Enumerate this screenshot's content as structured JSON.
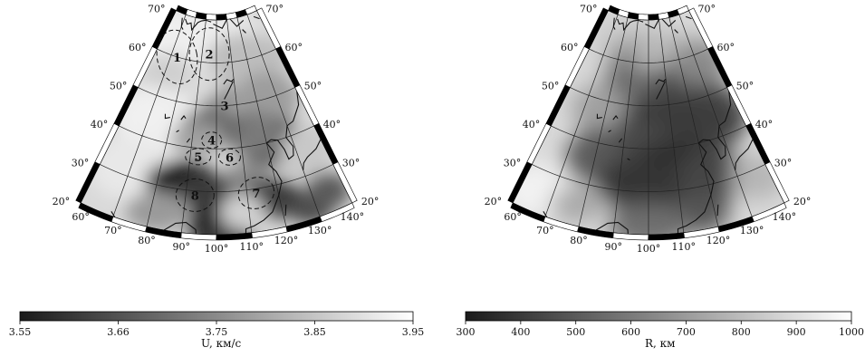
{
  "maps": [
    {
      "id": "velocity",
      "latitudes": [
        "70°",
        "60°",
        "50°",
        "40°",
        "30°",
        "20°"
      ],
      "longitudes": [
        "60°",
        "70°",
        "80°",
        "90°",
        "100°",
        "110°",
        "120°",
        "130°",
        "140°"
      ],
      "regions": [
        "1",
        "2",
        "3",
        "4",
        "5",
        "6",
        "7",
        "8"
      ],
      "colorbar": {
        "ticks": [
          "3.55",
          "3.66",
          "3.75",
          "3.85",
          "3.95"
        ],
        "label": "U, км/с"
      }
    },
    {
      "id": "radius",
      "latitudes": [
        "70°",
        "60°",
        "50°",
        "40°",
        "30°",
        "20°"
      ],
      "longitudes": [
        "60°",
        "70°",
        "80°",
        "90°",
        "100°",
        "110°",
        "120°",
        "130°",
        "140°"
      ],
      "colorbar": {
        "ticks": [
          "300",
          "400",
          "500",
          "600",
          "700",
          "800",
          "900",
          "1000"
        ],
        "label": "R, км"
      }
    }
  ]
}
